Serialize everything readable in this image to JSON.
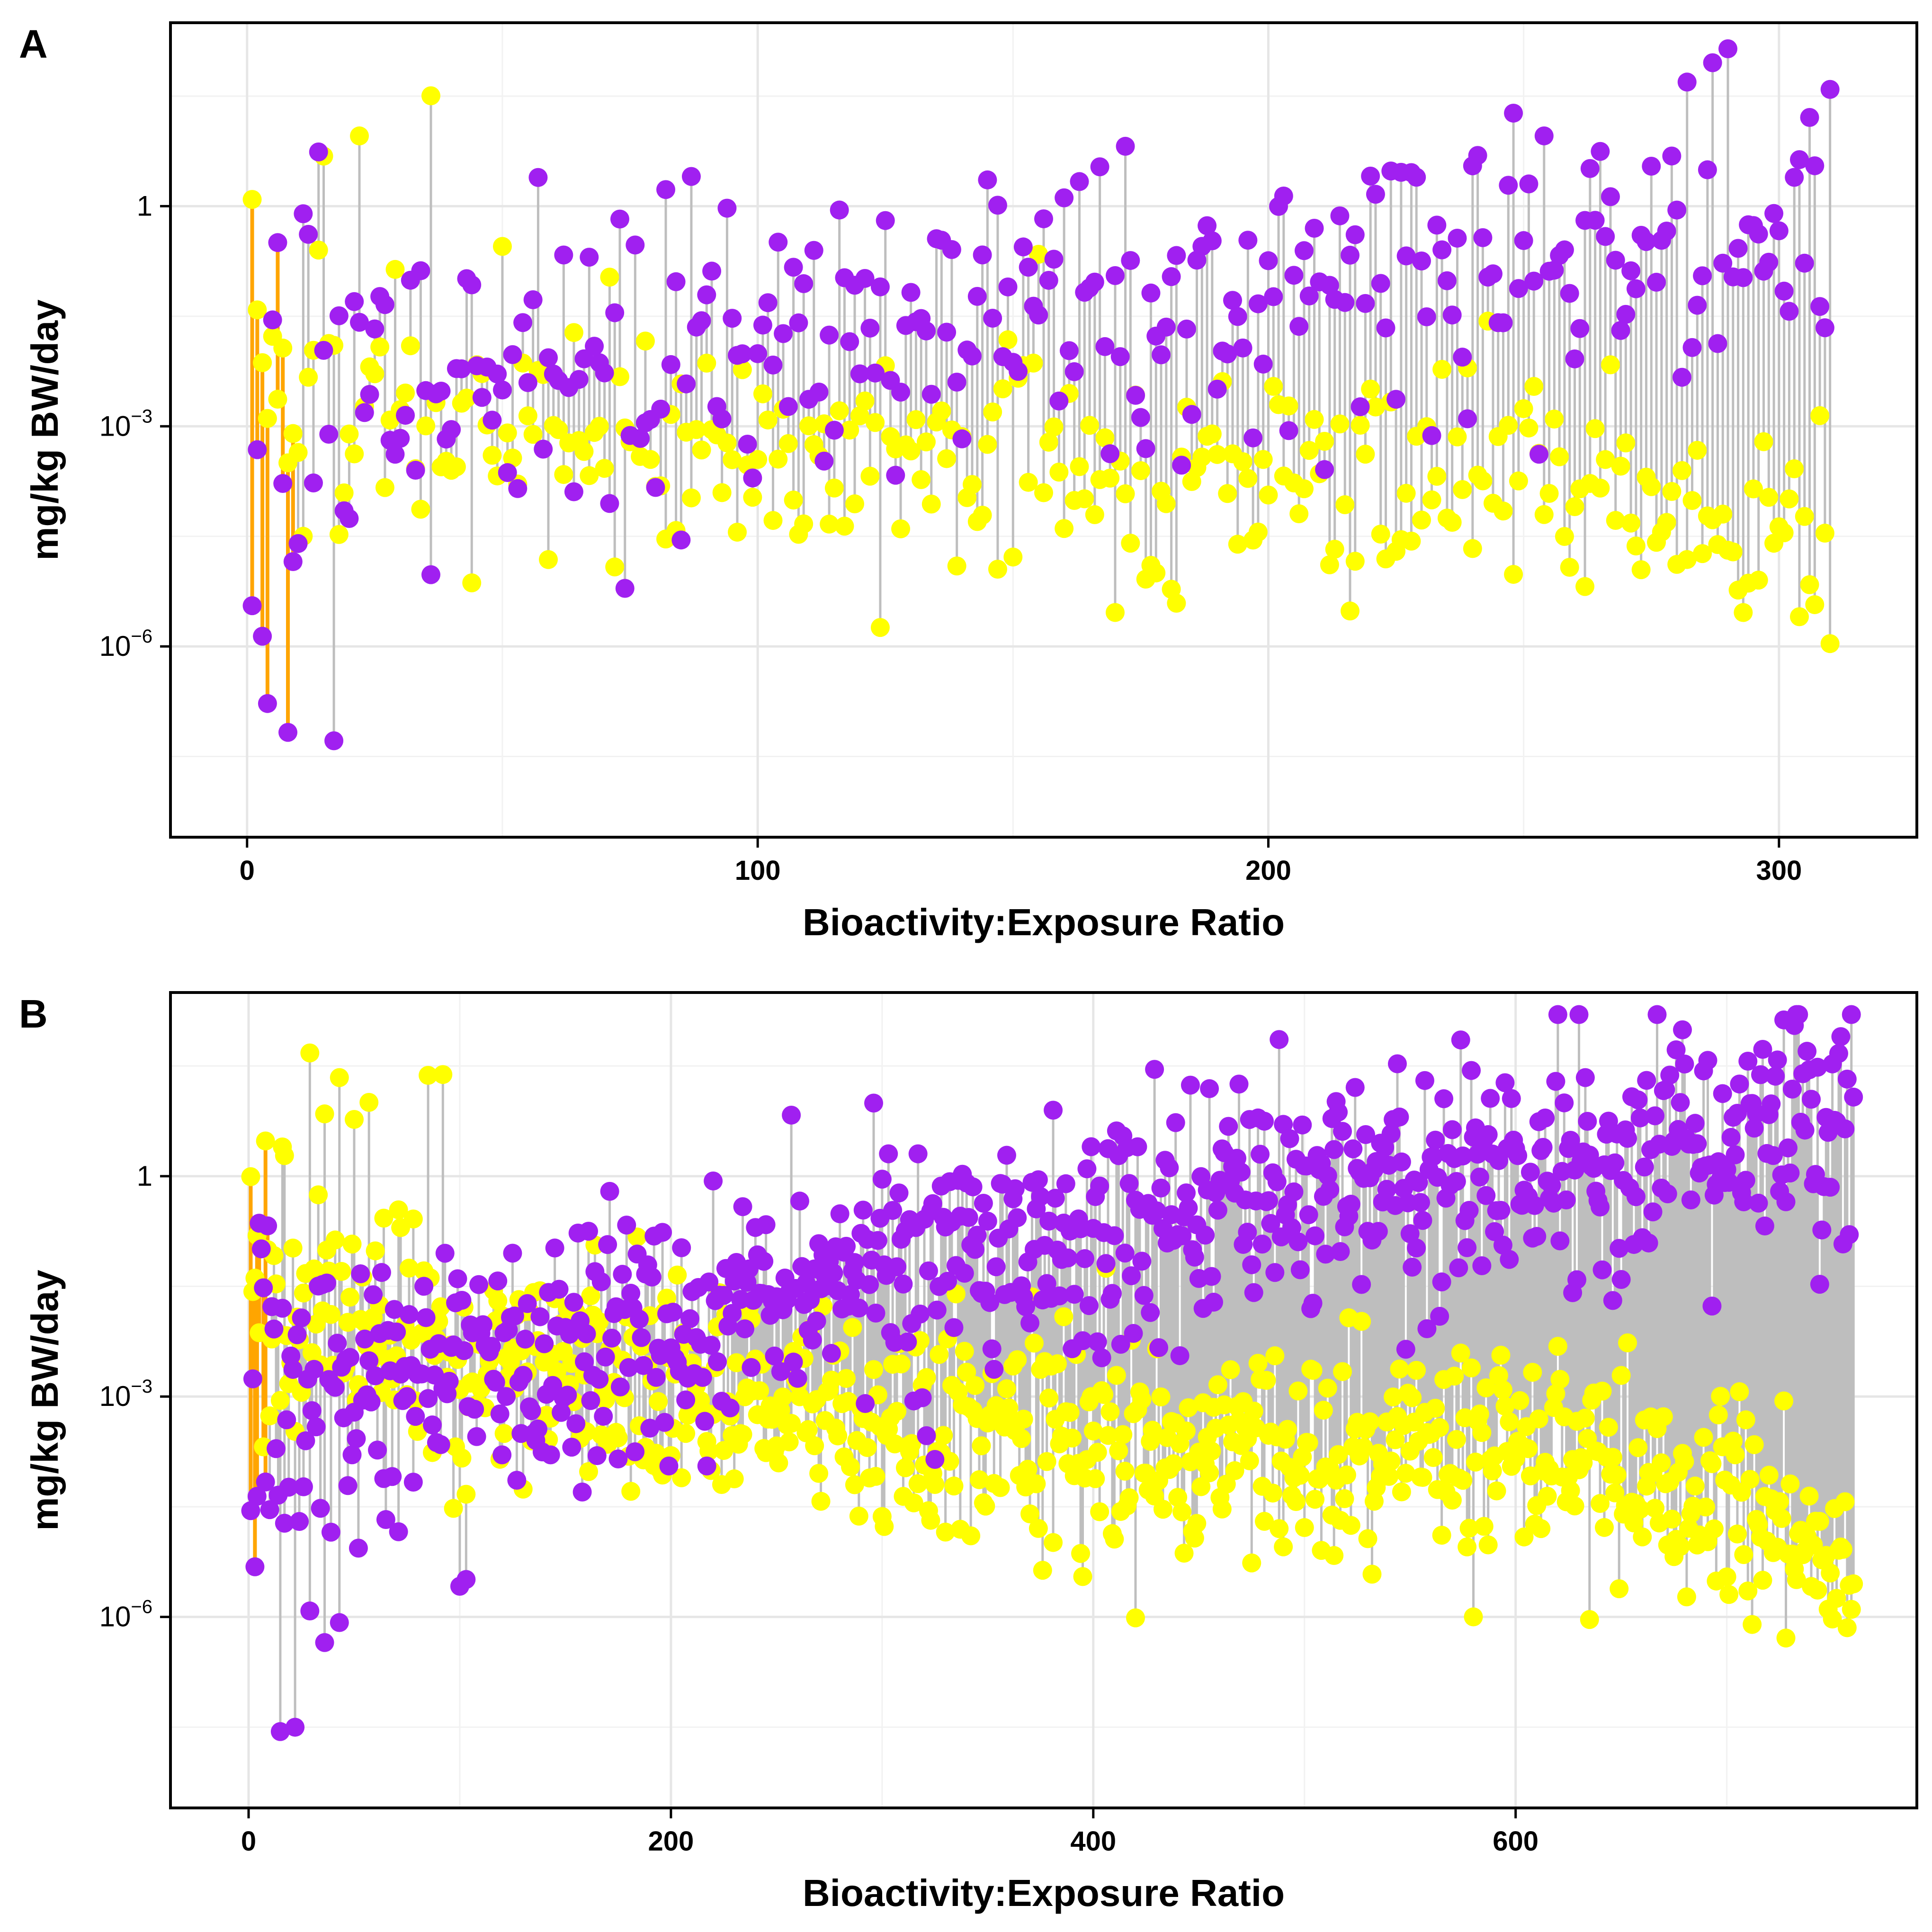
{
  "colors": {
    "background": "#ffffff",
    "grid_major": "#e6e6e6",
    "grid_minor": "#f2f2f2",
    "stem_highlight": "#ffa500",
    "stem_default": "#bebebe",
    "upper_point": "#a020f0",
    "lower_point": "#ffff00",
    "frame": "#000000"
  },
  "chart_data": [
    {
      "panel": "A",
      "type": "scatter",
      "subtype": "dumbbell (paired points joined by vertical segments)",
      "xlabel": "Bioactivity:Exposure Ratio",
      "ylabel": "mg/kg BW/day",
      "xlim": [
        -15,
        327
      ],
      "x_ticks": [
        0,
        100,
        200,
        300
      ],
      "x_tick_labels": [
        "0",
        "100",
        "200",
        "300"
      ],
      "y_scale": "log10",
      "ylim_log10": [
        -8.6,
        2.5
      ],
      "y_ticks": [
        {
          "base": "1",
          "exp": ""
        },
        {
          "base": "10",
          "exp": "−3"
        },
        {
          "base": "10",
          "exp": "−6"
        }
      ],
      "y_tick_values_log10": [
        0,
        -3,
        -6
      ],
      "grid": true,
      "highlight_ratio_below": 10,
      "n_pairs": 310,
      "purple_log10_sample": [
        -5.5,
        -7.3,
        -2.2,
        -1.6,
        -3.1,
        -4.9,
        -1.0,
        -2.4,
        0.4,
        -4.2,
        -4.1,
        -3.2,
        -4.6,
        -2.4,
        -3.8,
        -2.7,
        -3.6,
        -2.4,
        -3.7,
        -2.8,
        -2.0,
        -2.3,
        -1.6,
        -2.2,
        -3.6,
        -3.2,
        -3.5,
        -2.5,
        -2.9,
        -2.6,
        -3.5,
        -2.8,
        -2.5,
        -3.0,
        -3.3,
        -2.1,
        -3.4,
        -2.3,
        -0.3,
        -0.6,
        -2.3,
        -2.0,
        -0.2,
        -1.5,
        -1.9
      ],
      "yellow_log10_sample": [
        0.2,
        -3.2,
        1.2,
        1.1,
        -0.7,
        1.6,
        -1.9,
        -0.4,
        -2.6,
        -1.4,
        -1.2,
        -1.5,
        -2.2,
        -2.9,
        -3.5,
        -3.1,
        -3.2,
        -3.4,
        -3.5,
        -4.3,
        -3.9,
        -2.3,
        -0.5,
        -3.7,
        -3.9,
        -5.4,
        -4.0,
        -3.3,
        -4.6,
        -3.1,
        -3.6,
        -3.3,
        -4.3,
        -3.8,
        -2.4,
        -4.0,
        -3.2,
        -4.1,
        -2.7,
        -3.8,
        -3.2,
        -4.5,
        -4.0,
        -3.6,
        -4.2
      ],
      "trend_purple_log10": [
        [
          0,
          -3.0
        ],
        [
          50,
          -2.3
        ],
        [
          100,
          -1.8
        ],
        [
          150,
          -1.2
        ],
        [
          200,
          -0.9
        ],
        [
          250,
          -0.4
        ],
        [
          300,
          0.2
        ],
        [
          310,
          0.4
        ]
      ],
      "trend_yellow_log10": [
        [
          0,
          -2.4
        ],
        [
          50,
          -3.2
        ],
        [
          100,
          -3.4
        ],
        [
          150,
          -3.5
        ],
        [
          200,
          -3.8
        ],
        [
          250,
          -3.8
        ],
        [
          300,
          -4.5
        ],
        [
          310,
          -5.0
        ]
      ]
    },
    {
      "panel": "B",
      "type": "scatter",
      "subtype": "dumbbell (paired points joined by vertical segments)",
      "xlabel": "Bioactivity:Exposure Ratio",
      "ylabel": "mg/kg BW/day",
      "xlim": [
        -37,
        790
      ],
      "x_ticks": [
        0,
        200,
        400,
        600
      ],
      "x_tick_labels": [
        "0",
        "200",
        "400",
        "600"
      ],
      "y_scale": "log10",
      "ylim_log10": [
        -8.6,
        2.5
      ],
      "y_ticks": [
        {
          "base": "1",
          "exp": ""
        },
        {
          "base": "10",
          "exp": "−3"
        },
        {
          "base": "10",
          "exp": "−6"
        }
      ],
      "y_tick_values_log10": [
        0,
        -3,
        -6
      ],
      "grid": true,
      "highlight_ratio_below": 10,
      "n_pairs": 760,
      "purple_log10_sample": [
        -4.8,
        -7.4,
        -5.9,
        -3.0,
        -4.4,
        -3.0,
        -2.1,
        -4.0,
        -3.4,
        -3.0,
        -2.6,
        -3.5,
        -2.8,
        -1.5,
        -1.9,
        -2.2,
        -1.4,
        -1.6,
        -1.0,
        -0.6,
        -1.2,
        -1.5,
        -0.8,
        -0.9,
        0.4,
        -0.6,
        -1.0,
        -0.2,
        -0.6,
        -1.0,
        -0.4,
        -0.1,
        -0.2,
        0.3,
        0.4,
        -0.5,
        -0.3,
        0.2,
        0.7,
        0.9,
        -0.1,
        -0.5,
        0.3,
        1.3,
        1.5
      ],
      "yellow_log10_sample": [
        0.2,
        -3.3,
        1.6,
        0.9,
        -0.3,
        1.4,
        -2.7,
        -1.7,
        -3.5,
        -1.9,
        -2.9,
        -1.8,
        -2.3,
        -3.6,
        -3.1,
        -2.8,
        -3.2,
        -3.4,
        -2.5,
        -4.6,
        -3.1,
        -3.6,
        -2.5,
        -3.8,
        -3.4,
        -3.3,
        -4.2,
        -4.0,
        -3.5,
        -4.3,
        -3.6,
        -4.1,
        -3.7,
        -4.3,
        -3.8,
        -4.1,
        -4.4,
        -3.9,
        -4.6,
        -4.2,
        -4.5,
        -5.2,
        -4.8,
        -5.6,
        -6.2
      ],
      "trend_purple_log10": [
        [
          0,
          -3.0
        ],
        [
          100,
          -2.6
        ],
        [
          200,
          -2.1
        ],
        [
          300,
          -1.2
        ],
        [
          400,
          -0.8
        ],
        [
          500,
          -0.4
        ],
        [
          600,
          0.0
        ],
        [
          700,
          0.5
        ],
        [
          760,
          0.6
        ]
      ],
      "trend_yellow_log10": [
        [
          0,
          -1.5
        ],
        [
          100,
          -2.6
        ],
        [
          200,
          -2.9
        ],
        [
          300,
          -3.4
        ],
        [
          400,
          -3.6
        ],
        [
          500,
          -3.8
        ],
        [
          600,
          -3.8
        ],
        [
          700,
          -4.3
        ],
        [
          760,
          -5.3
        ]
      ]
    }
  ]
}
